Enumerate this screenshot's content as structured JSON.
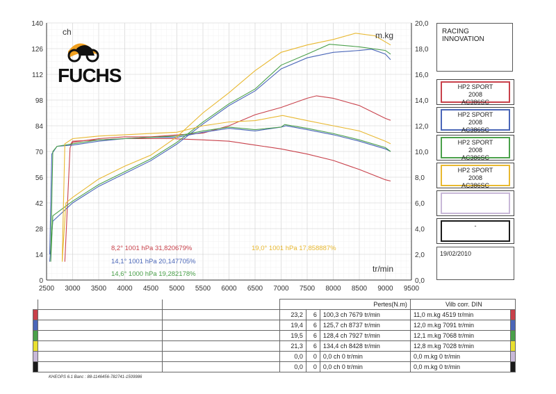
{
  "chart_data": {
    "type": "line",
    "x_ticks": [
      "2500",
      "3000",
      "3500",
      "4000",
      "4500",
      "5000",
      "5500",
      "6000",
      "6500",
      "7000",
      "7500",
      "8000",
      "8500",
      "9000",
      "9500"
    ],
    "y_left_ticks": [
      "0",
      "14",
      "28",
      "42",
      "56",
      "70",
      "84",
      "98",
      "112",
      "126",
      "140"
    ],
    "y_right_ticks": [
      "0,0",
      "2,0",
      "4,0",
      "6,0",
      "8,0",
      "10,0",
      "12,0",
      "14,0",
      "16,0",
      "18,0",
      "20,0"
    ],
    "y_left_label": "ch",
    "y_right_label": "m.kg",
    "x_label": "tr/min",
    "xlim": [
      2500,
      9500
    ],
    "ylim_left": [
      0,
      140
    ],
    "ylim_right": [
      0,
      20
    ],
    "series": [
      {
        "color": "#c8404a",
        "annotation": "8,2°  1001 hPa  31,820679%",
        "power": [
          [
            2850,
            10
          ],
          [
            2950,
            72
          ],
          [
            3000,
            75
          ],
          [
            3500,
            77
          ],
          [
            4000,
            78
          ],
          [
            4500,
            78
          ],
          [
            5000,
            79
          ],
          [
            5500,
            80
          ],
          [
            6000,
            84
          ],
          [
            6500,
            90
          ],
          [
            7000,
            94
          ],
          [
            7500,
            99
          ],
          [
            7679,
            100.3
          ],
          [
            8000,
            99
          ],
          [
            8500,
            95
          ],
          [
            9000,
            88
          ],
          [
            9100,
            87
          ]
        ],
        "torque": [
          [
            2950,
            10.5
          ],
          [
            3000,
            10.8
          ],
          [
            3500,
            10.9
          ],
          [
            4000,
            11.0
          ],
          [
            4500,
            11.0
          ],
          [
            4900,
            11.0
          ],
          [
            5500,
            10.9
          ],
          [
            6000,
            10.8
          ],
          [
            6500,
            10.5
          ],
          [
            7000,
            10.2
          ],
          [
            7500,
            9.8
          ],
          [
            8000,
            9.3
          ],
          [
            8500,
            8.6
          ],
          [
            9000,
            7.8
          ],
          [
            9100,
            7.7
          ]
        ]
      },
      {
        "color": "#4a66b8",
        "annotation": "14,1°  1001 hPa  20,147705%",
        "power": [
          [
            2560,
            10
          ],
          [
            2620,
            32
          ],
          [
            3000,
            42
          ],
          [
            3500,
            51
          ],
          [
            4000,
            58
          ],
          [
            4500,
            65
          ],
          [
            5000,
            74
          ],
          [
            5500,
            85
          ],
          [
            6000,
            95
          ],
          [
            6500,
            103
          ],
          [
            7000,
            115
          ],
          [
            7500,
            121
          ],
          [
            8000,
            124
          ],
          [
            8500,
            125
          ],
          [
            8737,
            125.7
          ],
          [
            9000,
            123
          ],
          [
            9100,
            120
          ]
        ],
        "torque": [
          [
            2560,
            2.0
          ],
          [
            2600,
            9.8
          ],
          [
            2700,
            10.4
          ],
          [
            3000,
            10.5
          ],
          [
            3500,
            10.8
          ],
          [
            4000,
            11.0
          ],
          [
            4500,
            11.1
          ],
          [
            5000,
            11.1
          ],
          [
            5500,
            11.5
          ],
          [
            6000,
            11.8
          ],
          [
            6500,
            11.6
          ],
          [
            7000,
            11.9
          ],
          [
            7091,
            12.0
          ],
          [
            7500,
            11.7
          ],
          [
            8000,
            11.3
          ],
          [
            8500,
            10.8
          ],
          [
            9000,
            10.2
          ],
          [
            9100,
            10.0
          ]
        ]
      },
      {
        "color": "#4aa04a",
        "annotation": "14,6°  1000 hPa  19,282178%",
        "power": [
          [
            2580,
            10
          ],
          [
            2620,
            35
          ],
          [
            3000,
            43
          ],
          [
            3500,
            52
          ],
          [
            4000,
            59
          ],
          [
            4500,
            66
          ],
          [
            5000,
            75
          ],
          [
            5500,
            86
          ],
          [
            6000,
            96
          ],
          [
            6500,
            104
          ],
          [
            7000,
            117
          ],
          [
            7500,
            123
          ],
          [
            7927,
            128.4
          ],
          [
            8500,
            127
          ],
          [
            9000,
            125
          ],
          [
            9100,
            123
          ]
        ],
        "torque": [
          [
            2580,
            2.0
          ],
          [
            2620,
            10.0
          ],
          [
            2700,
            10.4
          ],
          [
            3000,
            10.6
          ],
          [
            3500,
            10.9
          ],
          [
            4000,
            11.0
          ],
          [
            4500,
            11.1
          ],
          [
            5000,
            11.2
          ],
          [
            5500,
            11.6
          ],
          [
            6000,
            11.9
          ],
          [
            6500,
            11.7
          ],
          [
            7000,
            11.9
          ],
          [
            7068,
            12.1
          ],
          [
            7500,
            11.8
          ],
          [
            8000,
            11.4
          ],
          [
            8500,
            10.9
          ],
          [
            9000,
            10.3
          ],
          [
            9100,
            10.0
          ]
        ]
      },
      {
        "color": "#e8b830",
        "annotation": "19,0°  1001 hPa  17,858887%",
        "power": [
          [
            2800,
            10
          ],
          [
            2870,
            42
          ],
          [
            3000,
            45
          ],
          [
            3500,
            55
          ],
          [
            4000,
            62
          ],
          [
            4500,
            68
          ],
          [
            5000,
            78
          ],
          [
            5500,
            91
          ],
          [
            6000,
            102
          ],
          [
            6500,
            114
          ],
          [
            7000,
            124
          ],
          [
            7500,
            128
          ],
          [
            8000,
            131
          ],
          [
            8428,
            134.4
          ],
          [
            8800,
            133
          ],
          [
            9100,
            128
          ]
        ],
        "torque": [
          [
            2800,
            1.5
          ],
          [
            2850,
            10.6
          ],
          [
            3000,
            11.0
          ],
          [
            3500,
            11.2
          ],
          [
            4000,
            11.3
          ],
          [
            4500,
            11.4
          ],
          [
            5000,
            11.5
          ],
          [
            5500,
            12.0
          ],
          [
            6000,
            12.3
          ],
          [
            6500,
            12.4
          ],
          [
            7028,
            12.8
          ],
          [
            7500,
            12.4
          ],
          [
            8000,
            12.0
          ],
          [
            8500,
            11.6
          ],
          [
            9000,
            10.8
          ],
          [
            9100,
            10.6
          ]
        ]
      }
    ]
  },
  "brand": {
    "logo_text": "FUCHS"
  },
  "title_box": {
    "text": "RACING INNOVATION"
  },
  "legend": [
    {
      "color": "#c8404a",
      "line1": "HP2 SPORT",
      "line2": "2008",
      "line3": "AC386SC"
    },
    {
      "color": "#4a66b8",
      "line1": "HP2 SPORT",
      "line2": "2008",
      "line3": "AC386SC"
    },
    {
      "color": "#4aa04a",
      "line1": "HP2 SPORT",
      "line2": "2008",
      "line3": "AC386SC"
    },
    {
      "color": "#e8b830",
      "line1": "HP2 SPORT",
      "line2": "2008",
      "line3": "AC386SC"
    },
    {
      "color": "#c8b8d8",
      "line1": "",
      "line2": "",
      "line3": ""
    },
    {
      "color": "#1a1a1a",
      "line1": "",
      "line2": "-",
      "line3": ""
    }
  ],
  "date": "19/02/2010",
  "table": {
    "header_pertes": "Pertes(N.m)",
    "header_vilb": "Vilb corr. DIN",
    "rows": [
      {
        "color": "#c8404a",
        "pertes": "23,2",
        "n": "6",
        "power": "100,3 ch 7679 tr/min",
        "torque": "11,0 m.kg 4519 tr/min"
      },
      {
        "color": "#4a66b8",
        "pertes": "19,4",
        "n": "6",
        "power": "125,7 ch 8737 tr/min",
        "torque": "12,0 m.kg 7091 tr/min"
      },
      {
        "color": "#4aa04a",
        "pertes": "19,5",
        "n": "6",
        "power": "128,4 ch 7927 tr/min",
        "torque": "12,1 m.kg 7068 tr/min"
      },
      {
        "color": "#e8e030",
        "pertes": "21,3",
        "n": "6",
        "power": "134,4 ch 8428 tr/min",
        "torque": "12,8 m.kg 7028 tr/min"
      },
      {
        "color": "#c8b8d8",
        "pertes": "0,0",
        "n": "0",
        "power": "0,0 ch 0 tr/min",
        "torque": "0,0 m.kg 0 tr/min"
      },
      {
        "color": "#1a1a1a",
        "pertes": "0,0",
        "n": "0",
        "power": "0,0 ch 0 tr/min",
        "torque": "0,0 m.kg 0 tr/min"
      }
    ]
  },
  "footer": "KHEOPS 6.1  Banc : 88-1146456-782741-1509986"
}
